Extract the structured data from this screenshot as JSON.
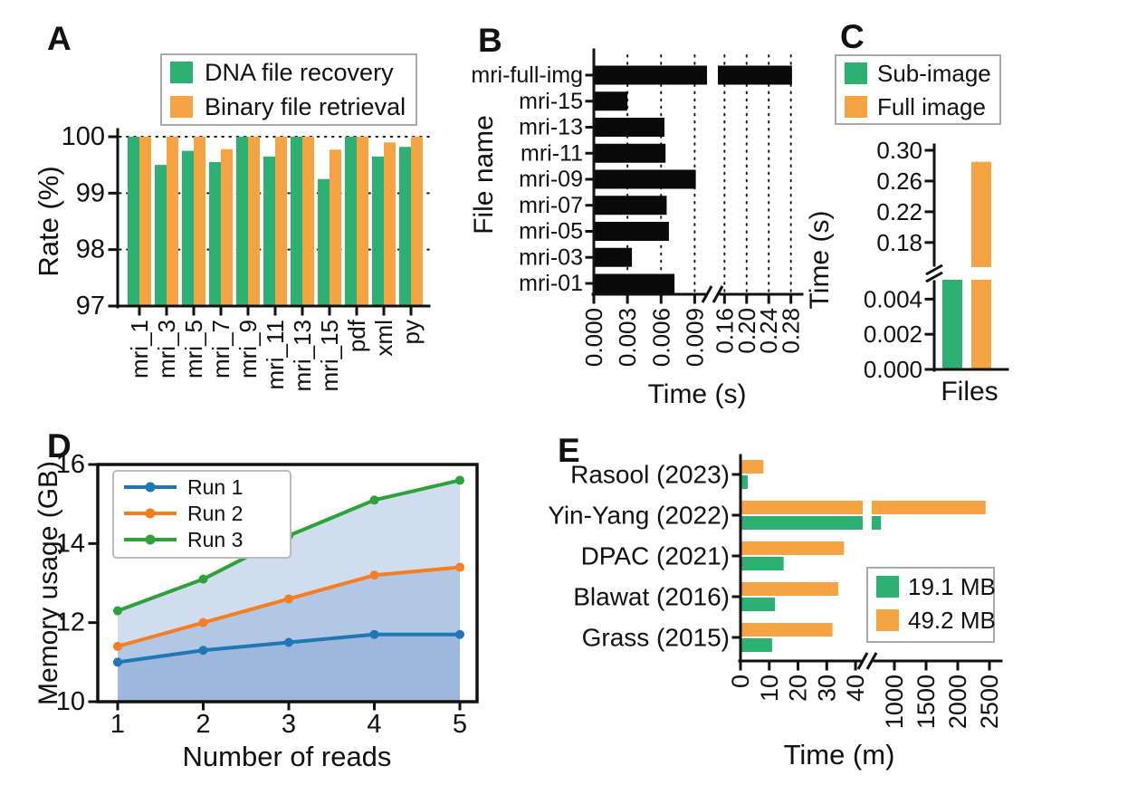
{
  "figure": {
    "background": "#ffffff",
    "panels": [
      {
        "letter": "A"
      },
      {
        "letter": "B"
      },
      {
        "letter": "C"
      },
      {
        "letter": "D"
      },
      {
        "letter": "E"
      }
    ]
  },
  "colors": {
    "green": "#2db173",
    "orange": "#f5a343",
    "black_bar": "#0a0a0a",
    "run1_blue": "#1f77b4",
    "run2_orange": "#f57e20",
    "run3_green": "#2ca339",
    "area_fill": "rgba(120,158,205,0.35)",
    "axis": "#111111",
    "legend_border": "#aaaaaa"
  },
  "chart_data": [
    {
      "panel": "A",
      "type": "bar",
      "ylabel": "Rate (%)",
      "ylim": [
        97,
        100
      ],
      "yticks": [
        "97",
        "98",
        "99",
        "100"
      ],
      "gridlines": [
        98,
        99,
        100
      ],
      "grid": "dotted-horizontal",
      "categories": [
        "mri_1",
        "mri_3",
        "mri_5",
        "mri_7",
        "mri_9",
        "mri_11",
        "mri_13",
        "mri_15",
        "pdf",
        "xml",
        "py"
      ],
      "series": [
        {
          "name": "DNA file recovery",
          "color_key": "green",
          "values": [
            100,
            99.5,
            99.75,
            99.55,
            100,
            99.65,
            100,
            99.25,
            100,
            99.65,
            99.82
          ]
        },
        {
          "name": "Binary file retrieval",
          "color_key": "orange",
          "values": [
            100,
            100,
            100,
            99.78,
            100,
            100,
            100,
            99.77,
            100,
            99.9,
            100
          ]
        }
      ],
      "legend": {
        "position": "top",
        "items": [
          "DNA file recovery",
          "Binary file retrieval"
        ]
      }
    },
    {
      "panel": "B",
      "type": "barh",
      "xlabel": "Time (s)",
      "ylabel": "File name",
      "bar_color_key": "black_bar",
      "grid": "dotted-vertical",
      "categories": [
        "mri-full-img",
        "mri-15",
        "mri-13",
        "mri-11",
        "mri-09",
        "mri-07",
        "mri-05",
        "mri-03",
        "mri-01"
      ],
      "values": [
        0.282,
        0.003,
        0.0063,
        0.0064,
        0.0091,
        0.0065,
        0.0067,
        0.0034,
        0.0072
      ],
      "x_axis_break": {
        "segment1": {
          "ticks": [
            "0.000",
            "0.003",
            "0.006",
            "0.009"
          ],
          "tick_values": [
            0,
            0.003,
            0.006,
            0.009
          ],
          "range": [
            0,
            0.0101
          ]
        },
        "segment2": {
          "ticks": [
            "0.16",
            "0.20",
            "0.24",
            "0.28"
          ],
          "tick_values": [
            0.16,
            0.2,
            0.24,
            0.28
          ],
          "range": [
            0.148,
            0.292
          ]
        }
      }
    },
    {
      "panel": "C",
      "type": "bar",
      "xlabel": "Files",
      "ylabel": "Time (s)",
      "series": [
        {
          "name": "Sub-image",
          "color_key": "green",
          "value": 0.0057,
          "clipped_at_break": true
        },
        {
          "name": "Full image",
          "color_key": "orange",
          "value": 0.285
        }
      ],
      "y_axis_break": {
        "lower": {
          "ticks": [
            "0.000",
            "0.002",
            "0.004"
          ],
          "tick_values": [
            0,
            0.002,
            0.004
          ],
          "range": [
            0,
            0.0051
          ]
        },
        "upper": {
          "ticks": [
            "0.18",
            "0.22",
            "0.26",
            "0.30"
          ],
          "tick_values": [
            0.18,
            0.22,
            0.26,
            0.3
          ],
          "range": [
            0.148,
            0.3
          ]
        }
      },
      "legend": {
        "position": "top",
        "items": [
          "Sub-image",
          "Full image"
        ]
      }
    },
    {
      "panel": "D",
      "type": "line",
      "xlabel": "Number of reads",
      "ylabel": "Memory usage (GB)",
      "x": [
        1,
        2,
        3,
        4,
        5
      ],
      "xticks": [
        "1",
        "2",
        "3",
        "4",
        "5"
      ],
      "yticks": [
        "10",
        "12",
        "14",
        "16"
      ],
      "ylim": [
        10,
        16
      ],
      "area_fill": true,
      "series": [
        {
          "name": "Run 1",
          "color_key": "run1_blue",
          "values": [
            11.0,
            11.3,
            11.5,
            11.7,
            11.7
          ]
        },
        {
          "name": "Run 2",
          "color_key": "run2_orange",
          "values": [
            11.4,
            12.0,
            12.6,
            13.2,
            13.4
          ]
        },
        {
          "name": "Run 3",
          "color_key": "run3_green",
          "values": [
            12.3,
            13.1,
            14.2,
            15.1,
            15.6
          ]
        }
      ],
      "legend": {
        "position": "top-left",
        "items": [
          "Run 1",
          "Run 2",
          "Run 3"
        ]
      }
    },
    {
      "panel": "E",
      "type": "barh-grouped",
      "xlabel": "Time (m)",
      "categories": [
        "Rasool (2023)",
        "Yin-Yang (2022)",
        "DPAC (2021)",
        "Blawat (2016)",
        "Grass (2015)"
      ],
      "series": [
        {
          "name": "19.1 MB",
          "color_key": "green",
          "values": [
            2.5,
            790,
            15,
            12,
            11
          ]
        },
        {
          "name": "49.2 MB",
          "color_key": "orange",
          "values": [
            8,
            2440,
            36,
            34,
            32
          ]
        }
      ],
      "x_axis_break": {
        "segment1": {
          "ticks": [
            "0",
            "10",
            "20",
            "30",
            "40"
          ],
          "tick_values": [
            0,
            10,
            20,
            30,
            40
          ],
          "range": [
            0,
            42.5
          ]
        },
        "segment2": {
          "ticks": [
            "1000",
            "1500",
            "2000",
            "2500"
          ],
          "tick_values": [
            1000,
            1500,
            2000,
            2500
          ],
          "range": [
            643,
            2600
          ]
        }
      },
      "legend": {
        "position": "right",
        "items": [
          "19.1 MB",
          "49.2 MB"
        ]
      }
    }
  ]
}
